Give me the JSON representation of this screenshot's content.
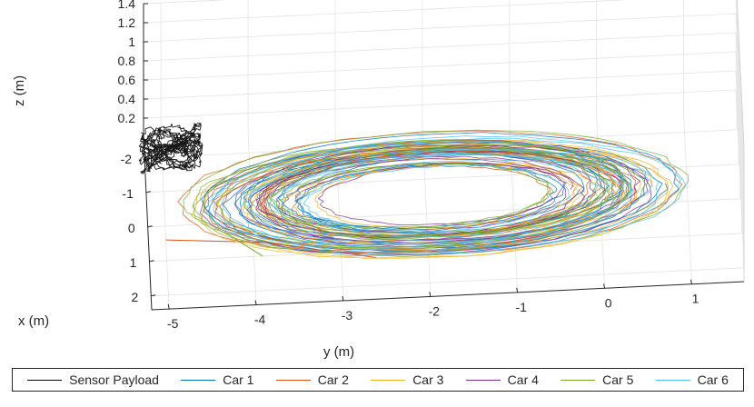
{
  "chart_data": {
    "type": "line",
    "subtype": "3d-trajectory",
    "xlabel": "x (m)",
    "ylabel": "y (m)",
    "zlabel": "z (m)",
    "xticks": [
      "-2",
      "-1",
      "0",
      "1",
      "2"
    ],
    "yticks": [
      "-5",
      "-4",
      "-3",
      "-2",
      "-1",
      "0",
      "1"
    ],
    "zticks": [
      "0.2",
      "0.4",
      "0.6",
      "0.8",
      "1",
      "1.2",
      "1.4"
    ],
    "xlim": [
      -2.6,
      2.4
    ],
    "ylim": [
      -5.2,
      1.6
    ],
    "zlim": [
      0,
      1.4
    ],
    "grid": true,
    "legend_position": "bottom",
    "series": [
      {
        "name": "Sensor Payload",
        "color": "#000000",
        "center": [
          -1.7,
          -4.9
        ],
        "radius": [
          0.35,
          0.35
        ],
        "z": 0.2,
        "altitude": true,
        "loops": 18,
        "seed": 1
      },
      {
        "name": "Car 1",
        "color": "#0072BD",
        "center": [
          -0.55,
          -1.9
        ],
        "radius": [
          1.3,
          2.1
        ],
        "z": 0,
        "loops": 14,
        "seed": 2
      },
      {
        "name": "Car 2",
        "color": "#D95319",
        "center": [
          -0.5,
          -2.0
        ],
        "radius": [
          1.35,
          2.15
        ],
        "z": 0,
        "loops": 10,
        "seed": 3,
        "tail": [
          [
            0.4,
            -5.0
          ],
          [
            0.6,
            -3.9
          ],
          [
            1.2,
            -2.6
          ]
        ]
      },
      {
        "name": "Car 3",
        "color": "#EDB120",
        "center": [
          -0.45,
          -1.85
        ],
        "radius": [
          1.3,
          2.1
        ],
        "z": 0,
        "loops": 12,
        "seed": 4
      },
      {
        "name": "Car 4",
        "color": "#7E2F8E",
        "center": [
          -0.5,
          -1.9
        ],
        "radius": [
          1.25,
          2.0
        ],
        "z": 0,
        "loops": 10,
        "seed": 5
      },
      {
        "name": "Car 5",
        "color": "#77AC30",
        "center": [
          -0.55,
          -2.0
        ],
        "radius": [
          1.35,
          2.2
        ],
        "z": 0,
        "loops": 12,
        "seed": 6,
        "tail": [
          [
            0.3,
            -4.3
          ],
          [
            1.0,
            -3.9
          ]
        ]
      },
      {
        "name": "Car 6",
        "color": "#4DBEEE",
        "center": [
          -0.45,
          -1.8
        ],
        "radius": [
          1.3,
          2.1
        ],
        "z": 0,
        "loops": 10,
        "seed": 7
      }
    ]
  }
}
